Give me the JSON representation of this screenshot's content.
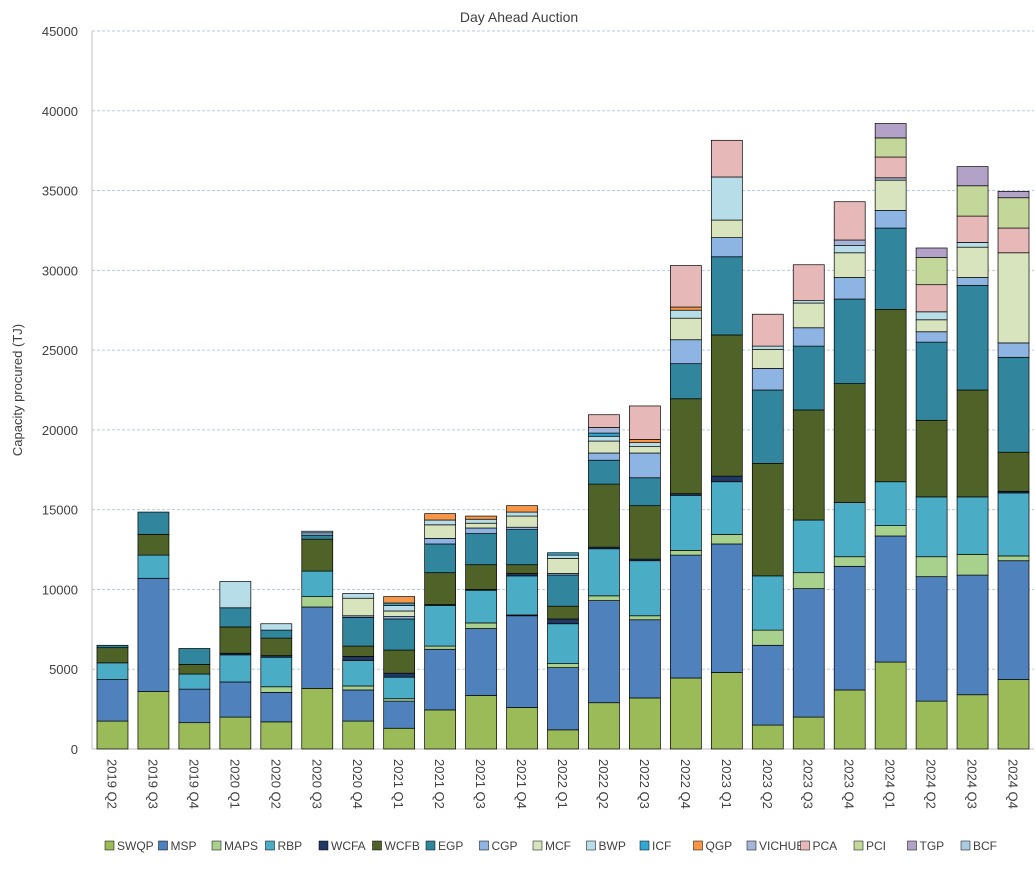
{
  "chart_data": {
    "type": "bar",
    "stacked": true,
    "title": "Day Ahead Auction",
    "ylabel": "Capacity procured (TJ)",
    "xlabel": "",
    "ylim": [
      0,
      45000
    ],
    "yticks": [
      0,
      5000,
      10000,
      15000,
      20000,
      25000,
      30000,
      35000,
      40000,
      45000
    ],
    "grid": "horizontal-dashed",
    "legend": "bottom",
    "categories": [
      "2019 Q2",
      "2019 Q3",
      "2019 Q4",
      "2020 Q1",
      "2020 Q2",
      "2020 Q3",
      "2020 Q4",
      "2021 Q1",
      "2021 Q2",
      "2021 Q3",
      "2021 Q4",
      "2022 Q1",
      "2022 Q2",
      "2022 Q3",
      "2022 Q4",
      "2023 Q1",
      "2023 Q2",
      "2023 Q3",
      "2023 Q4",
      "2024 Q1",
      "2024 Q2",
      "2024 Q3",
      "2024 Q4"
    ],
    "series": [
      {
        "name": "SWQP",
        "color": "#9bbb59",
        "values": [
          1750,
          3600,
          1650,
          2000,
          1700,
          3800,
          1750,
          1300,
          2450,
          3350,
          2600,
          1200,
          2900,
          3200,
          4450,
          4800,
          1500,
          2000,
          3700,
          5450,
          3000,
          3400,
          4350
        ]
      },
      {
        "name": "MSP",
        "color": "#4f81bd",
        "values": [
          2600,
          7100,
          2100,
          2200,
          1850,
          5100,
          1950,
          1700,
          3800,
          4200,
          5750,
          3900,
          6400,
          4900,
          7700,
          8050,
          5000,
          8050,
          7750,
          7900,
          7800,
          7500,
          7450
        ]
      },
      {
        "name": "MAPS",
        "color": "#a9d18e",
        "values": [
          0,
          0,
          0,
          0,
          350,
          650,
          250,
          150,
          200,
          350,
          50,
          250,
          300,
          250,
          300,
          600,
          950,
          1000,
          600,
          650,
          1250,
          1300,
          300
        ]
      },
      {
        "name": "RBP",
        "color": "#4bacc6",
        "values": [
          1050,
          1450,
          950,
          1700,
          1850,
          1600,
          1600,
          1350,
          2550,
          2050,
          2450,
          2500,
          2950,
          3450,
          3450,
          3300,
          3400,
          3300,
          3400,
          2750,
          3750,
          3600,
          3950
        ]
      },
      {
        "name": "WCFA",
        "color": "#1f3864",
        "values": [
          0,
          0,
          0,
          100,
          100,
          0,
          250,
          250,
          50,
          50,
          150,
          300,
          100,
          100,
          100,
          350,
          0,
          0,
          0,
          0,
          0,
          0,
          100
        ]
      },
      {
        "name": "WCFB",
        "color": "#4f6228",
        "values": [
          950,
          1300,
          600,
          1650,
          1100,
          2000,
          650,
          1450,
          2000,
          1550,
          550,
          800,
          3950,
          3350,
          5950,
          8850,
          7050,
          6900,
          7450,
          10800,
          4800,
          6700,
          2450
        ]
      },
      {
        "name": "EGP",
        "color": "#31859c",
        "values": [
          150,
          1400,
          1000,
          1200,
          500,
          250,
          1800,
          1950,
          1800,
          1950,
          2200,
          1950,
          1500,
          1750,
          2200,
          4900,
          4600,
          4000,
          5300,
          5100,
          4900,
          6550,
          5950
        ]
      },
      {
        "name": "CGP",
        "color": "#8eb4e3",
        "values": [
          0,
          0,
          0,
          0,
          0,
          150,
          100,
          150,
          350,
          350,
          150,
          100,
          450,
          1550,
          1500,
          1200,
          1350,
          1150,
          1350,
          1100,
          650,
          500,
          900
        ]
      },
      {
        "name": "MCF",
        "color": "#d7e4bd",
        "values": [
          0,
          0,
          0,
          0,
          0,
          0,
          1100,
          350,
          850,
          300,
          700,
          950,
          750,
          400,
          1350,
          1100,
          1200,
          1550,
          1550,
          1900,
          750,
          1900,
          5650
        ]
      },
      {
        "name": "BWP",
        "color": "#b7dee8",
        "values": [
          0,
          0,
          0,
          1650,
          400,
          100,
          300,
          350,
          300,
          250,
          250,
          200,
          300,
          250,
          500,
          2700,
          200,
          150,
          450,
          0,
          500,
          300,
          0
        ]
      },
      {
        "name": "ICF",
        "color": "#31a8d1",
        "values": [
          0,
          0,
          0,
          0,
          0,
          0,
          0,
          150,
          0,
          0,
          0,
          150,
          200,
          0,
          0,
          0,
          0,
          0,
          0,
          0,
          0,
          0,
          0
        ]
      },
      {
        "name": "QGP",
        "color": "#f79646",
        "values": [
          0,
          0,
          0,
          0,
          0,
          0,
          0,
          400,
          400,
          200,
          400,
          0,
          0,
          200,
          200,
          0,
          0,
          0,
          0,
          0,
          0,
          0,
          0
        ]
      },
      {
        "name": "VICHUB",
        "color": "#a6b5d8",
        "values": [
          0,
          0,
          0,
          0,
          0,
          0,
          0,
          0,
          0,
          0,
          0,
          0,
          350,
          0,
          0,
          0,
          0,
          0,
          350,
          150,
          0,
          0,
          0
        ]
      },
      {
        "name": "PCA",
        "color": "#e6b9b8",
        "values": [
          0,
          0,
          0,
          0,
          0,
          0,
          0,
          0,
          0,
          0,
          0,
          0,
          800,
          2100,
          2600,
          2300,
          2000,
          2250,
          2400,
          1300,
          1700,
          1650,
          1550
        ]
      },
      {
        "name": "PCI",
        "color": "#c4d79b",
        "values": [
          0,
          0,
          0,
          0,
          0,
          0,
          0,
          0,
          0,
          0,
          0,
          0,
          0,
          0,
          0,
          0,
          0,
          0,
          0,
          1200,
          1700,
          1900,
          1900
        ]
      },
      {
        "name": "TGP",
        "color": "#b3a2c7",
        "values": [
          0,
          0,
          0,
          0,
          0,
          0,
          0,
          0,
          0,
          0,
          0,
          0,
          0,
          0,
          0,
          0,
          0,
          0,
          0,
          900,
          600,
          1200,
          400
        ]
      },
      {
        "name": "BCF",
        "color": "#a9cce3",
        "values": [
          0,
          0,
          0,
          0,
          0,
          0,
          0,
          0,
          0,
          0,
          0,
          0,
          0,
          0,
          0,
          0,
          0,
          0,
          0,
          0,
          0,
          0,
          0
        ]
      }
    ]
  }
}
